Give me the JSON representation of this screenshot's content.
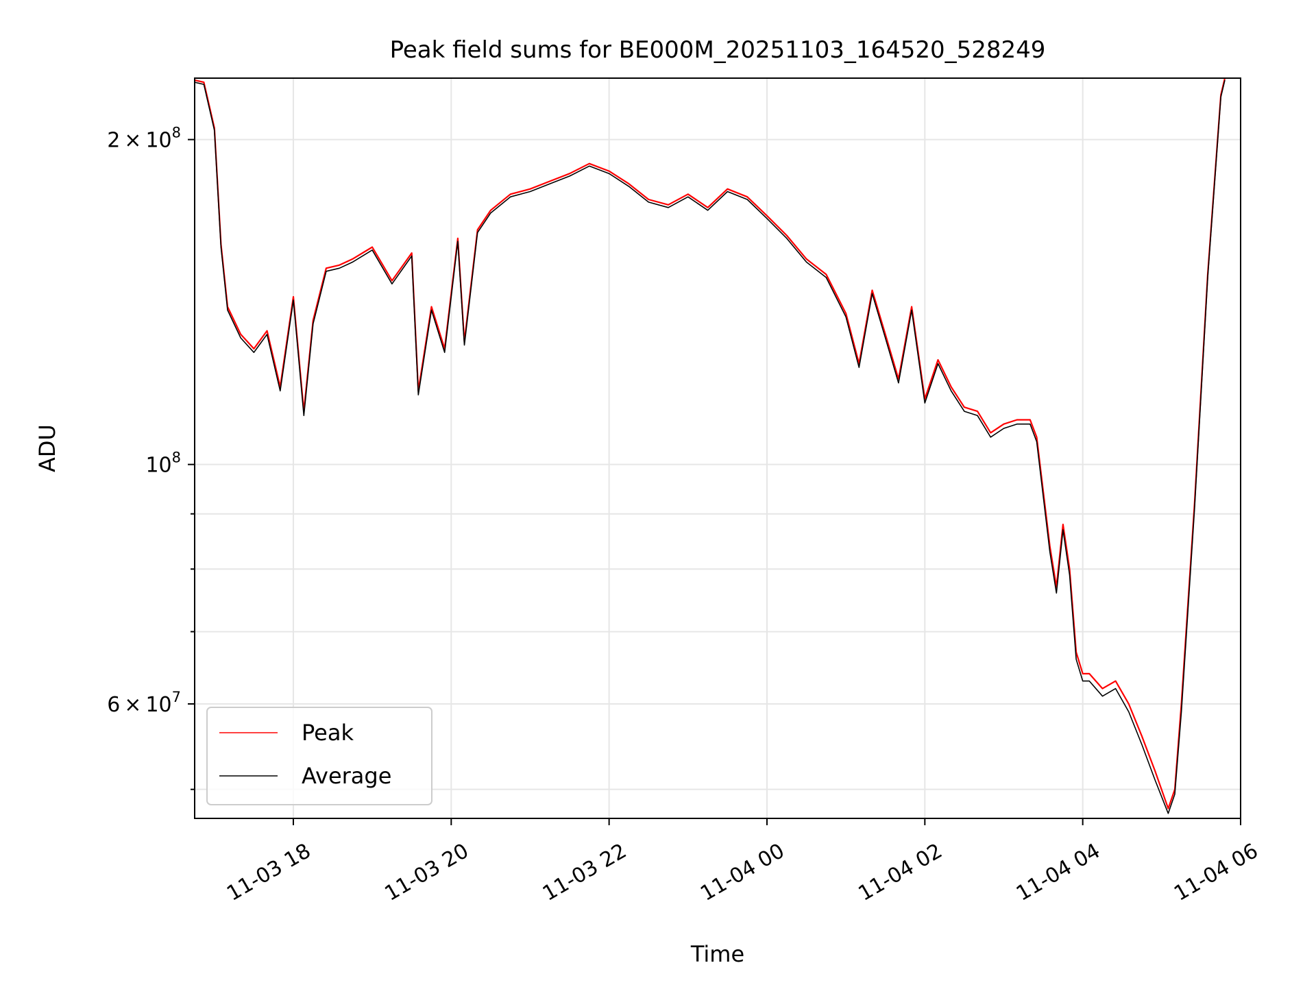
{
  "chart_data": {
    "type": "line",
    "title": "Peak field sums for BE000M_20251103_164520_528249",
    "xlabel": "Time",
    "ylabel": "ADU",
    "yscale": "log",
    "grid": true,
    "legend_position": "lower-left",
    "xlim": [
      "2025-11-03 16:45",
      "2025-11-04 06:00"
    ],
    "ylim": [
      47000000,
      228000000
    ],
    "x_ticks": [
      {
        "value": "2025-11-03 18:00",
        "label": "11-03 18"
      },
      {
        "value": "2025-11-03 20:00",
        "label": "11-03 20"
      },
      {
        "value": "2025-11-03 22:00",
        "label": "11-03 22"
      },
      {
        "value": "2025-11-04 00:00",
        "label": "11-04 00"
      },
      {
        "value": "2025-11-04 02:00",
        "label": "11-04 02"
      },
      {
        "value": "2025-11-04 04:00",
        "label": "11-04 04"
      },
      {
        "value": "2025-11-04 06:00",
        "label": "11-04 06"
      }
    ],
    "y_major_ticks": [
      {
        "value": 100000000,
        "base": "10",
        "exp": "8"
      },
      {
        "value": 200000000,
        "mant": "2",
        "base": "10",
        "exp": "8"
      },
      {
        "value": 60000000,
        "mant": "6",
        "base": "10",
        "exp": "7"
      }
    ],
    "y_minor_ticks": [
      50000000,
      70000000,
      80000000,
      90000000
    ],
    "series": [
      {
        "name": "Peak",
        "color": "#ff0000",
        "x": [
          "2025-11-03 16:45",
          "2025-11-03 16:52",
          "2025-11-03 17:00",
          "2025-11-03 17:05",
          "2025-11-03 17:10",
          "2025-11-03 17:20",
          "2025-11-03 17:30",
          "2025-11-03 17:40",
          "2025-11-03 17:50",
          "2025-11-03 18:00",
          "2025-11-03 18:08",
          "2025-11-03 18:15",
          "2025-11-03 18:25",
          "2025-11-03 18:35",
          "2025-11-03 18:45",
          "2025-11-03 19:00",
          "2025-11-03 19:15",
          "2025-11-03 19:30",
          "2025-11-03 19:35",
          "2025-11-03 19:45",
          "2025-11-03 19:55",
          "2025-11-03 20:05",
          "2025-11-03 20:10",
          "2025-11-03 20:20",
          "2025-11-03 20:30",
          "2025-11-03 20:45",
          "2025-11-03 21:00",
          "2025-11-03 21:15",
          "2025-11-03 21:30",
          "2025-11-03 21:45",
          "2025-11-03 22:00",
          "2025-11-03 22:15",
          "2025-11-03 22:30",
          "2025-11-03 22:45",
          "2025-11-03 23:00",
          "2025-11-03 23:15",
          "2025-11-03 23:30",
          "2025-11-03 23:45",
          "2025-11-04 00:00",
          "2025-11-04 00:15",
          "2025-11-04 00:30",
          "2025-11-04 00:45",
          "2025-11-04 01:00",
          "2025-11-04 01:10",
          "2025-11-04 01:20",
          "2025-11-04 01:30",
          "2025-11-04 01:40",
          "2025-11-04 01:50",
          "2025-11-04 02:00",
          "2025-11-04 02:10",
          "2025-11-04 02:20",
          "2025-11-04 02:30",
          "2025-11-04 02:40",
          "2025-11-04 02:50",
          "2025-11-04 03:00",
          "2025-11-04 03:10",
          "2025-11-04 03:20",
          "2025-11-04 03:25",
          "2025-11-04 03:35",
          "2025-11-04 03:40",
          "2025-11-04 03:45",
          "2025-11-04 03:50",
          "2025-11-04 03:55",
          "2025-11-04 04:00",
          "2025-11-04 04:05",
          "2025-11-04 04:15",
          "2025-11-04 04:25",
          "2025-11-04 04:35",
          "2025-11-04 04:45",
          "2025-11-04 04:55",
          "2025-11-04 05:05",
          "2025-11-04 05:10",
          "2025-11-04 05:15",
          "2025-11-04 05:25",
          "2025-11-04 05:35",
          "2025-11-04 05:45",
          "2025-11-04 05:48"
        ],
        "y": [
          227000000,
          226000000,
          205000000,
          160000000,
          140000000,
          132000000,
          128000000,
          133000000,
          118000000,
          143000000,
          112000000,
          136000000,
          152000000,
          153000000,
          155000000,
          159000000,
          148000000,
          157000000,
          117000000,
          140000000,
          128000000,
          162000000,
          130000000,
          165000000,
          172000000,
          178000000,
          180000000,
          183000000,
          186000000,
          190000000,
          187000000,
          182000000,
          176000000,
          174000000,
          178000000,
          173000000,
          180000000,
          177000000,
          170000000,
          163000000,
          155000000,
          150000000,
          138000000,
          124000000,
          145000000,
          132000000,
          120000000,
          140000000,
          115000000,
          125000000,
          118000000,
          113000000,
          112000000,
          107000000,
          109000000,
          110000000,
          110000000,
          106000000,
          84000000,
          77000000,
          88000000,
          80000000,
          67000000,
          64000000,
          64000000,
          62000000,
          63000000,
          60000000,
          56000000,
          52000000,
          48000000,
          50000000,
          60000000,
          92000000,
          150000000,
          220000000,
          228000000
        ]
      },
      {
        "name": "Average",
        "color": "#000000",
        "x": [
          "2025-11-03 16:45",
          "2025-11-03 16:52",
          "2025-11-03 17:00",
          "2025-11-03 17:05",
          "2025-11-03 17:10",
          "2025-11-03 17:20",
          "2025-11-03 17:30",
          "2025-11-03 17:40",
          "2025-11-03 17:50",
          "2025-11-03 18:00",
          "2025-11-03 18:08",
          "2025-11-03 18:15",
          "2025-11-03 18:25",
          "2025-11-03 18:35",
          "2025-11-03 18:45",
          "2025-11-03 19:00",
          "2025-11-03 19:15",
          "2025-11-03 19:30",
          "2025-11-03 19:35",
          "2025-11-03 19:45",
          "2025-11-03 19:55",
          "2025-11-03 20:05",
          "2025-11-03 20:10",
          "2025-11-03 20:20",
          "2025-11-03 20:30",
          "2025-11-03 20:45",
          "2025-11-03 21:00",
          "2025-11-03 21:15",
          "2025-11-03 21:30",
          "2025-11-03 21:45",
          "2025-11-03 22:00",
          "2025-11-03 22:15",
          "2025-11-03 22:30",
          "2025-11-03 22:45",
          "2025-11-03 23:00",
          "2025-11-03 23:15",
          "2025-11-03 23:30",
          "2025-11-03 23:45",
          "2025-11-04 00:00",
          "2025-11-04 00:15",
          "2025-11-04 00:30",
          "2025-11-04 00:45",
          "2025-11-04 01:00",
          "2025-11-04 01:10",
          "2025-11-04 01:20",
          "2025-11-04 01:30",
          "2025-11-04 01:40",
          "2025-11-04 01:50",
          "2025-11-04 02:00",
          "2025-11-04 02:10",
          "2025-11-04 02:20",
          "2025-11-04 02:30",
          "2025-11-04 02:40",
          "2025-11-04 02:50",
          "2025-11-04 03:00",
          "2025-11-04 03:10",
          "2025-11-04 03:20",
          "2025-11-04 03:25",
          "2025-11-04 03:35",
          "2025-11-04 03:40",
          "2025-11-04 03:45",
          "2025-11-04 03:50",
          "2025-11-04 03:55",
          "2025-11-04 04:00",
          "2025-11-04 04:05",
          "2025-11-04 04:15",
          "2025-11-04 04:25",
          "2025-11-04 04:35",
          "2025-11-04 04:45",
          "2025-11-04 04:55",
          "2025-11-04 05:05",
          "2025-11-04 05:10",
          "2025-11-04 05:15",
          "2025-11-04 05:25",
          "2025-11-04 05:35",
          "2025-11-04 05:45",
          "2025-11-04 05:48"
        ],
        "y": [
          226000000,
          225000000,
          204000000,
          159000000,
          139000000,
          131000000,
          127000000,
          132000000,
          117000000,
          142000000,
          111000000,
          135000000,
          151000000,
          152000000,
          154000000,
          158000000,
          147000000,
          156000000,
          116000000,
          139000000,
          127000000,
          161000000,
          129000000,
          164000000,
          171000000,
          177000000,
          179000000,
          182000000,
          185000000,
          189000000,
          186000000,
          181000000,
          175000000,
          173000000,
          177000000,
          172000000,
          179000000,
          176000000,
          169000000,
          162000000,
          154000000,
          149000000,
          137000000,
          123000000,
          144000000,
          131000000,
          119000000,
          139000000,
          114000000,
          124000000,
          117000000,
          112000000,
          111000000,
          106000000,
          108000000,
          109000000,
          109000000,
          105000000,
          83000000,
          76000000,
          87000000,
          79000000,
          66000000,
          63000000,
          63000000,
          61000000,
          62000000,
          59000000,
          55000000,
          51000000,
          47500000,
          49500000,
          59000000,
          91000000,
          149000000,
          219000000,
          227000000
        ]
      }
    ]
  }
}
